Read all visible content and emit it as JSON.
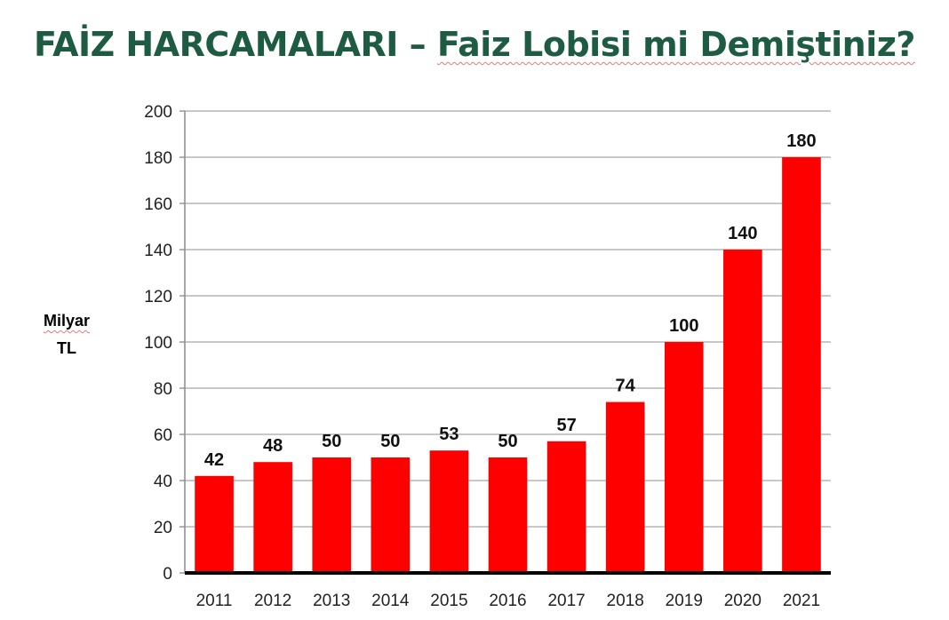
{
  "colors": {
    "title": "#1e5b43",
    "bar": "#ff0000",
    "grid": "#a6a6a6",
    "axis": "#000000"
  },
  "chart_data": {
    "type": "bar",
    "title_part1": "FAİZ HARCAMALARI – ",
    "title_part2": "Faiz Lobisi mi Demiştiniz?",
    "ylabel_line1": "Milyar",
    "ylabel_line2": "TL",
    "xlabel": "",
    "categories": [
      "2011",
      "2012",
      "2013",
      "2014",
      "2015",
      "2016",
      "2017",
      "2018",
      "2019",
      "2020",
      "2021"
    ],
    "values": [
      42,
      48,
      50,
      50,
      53,
      50,
      57,
      74,
      100,
      140,
      180
    ],
    "ylim": [
      0,
      200
    ],
    "yticks": [
      0,
      20,
      40,
      60,
      80,
      100,
      120,
      140,
      160,
      180,
      200
    ],
    "grid": true,
    "legend": "none"
  }
}
